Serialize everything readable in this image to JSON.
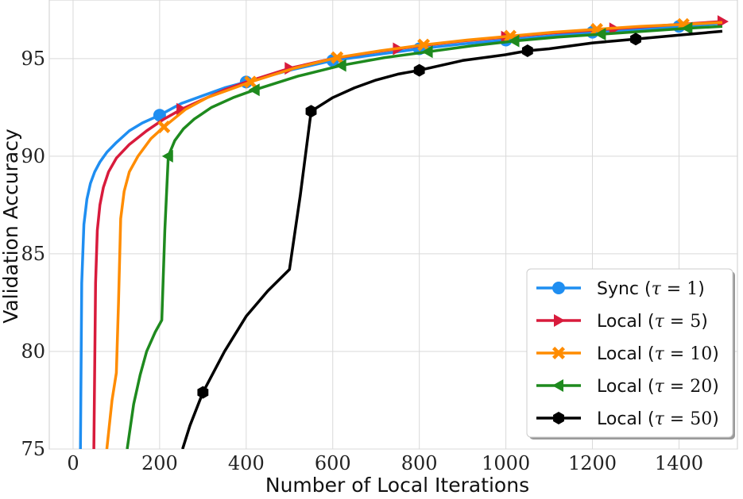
{
  "chart_data": {
    "type": "line",
    "xlabel": "Number of Local Iterations",
    "ylabel": "Validation Accuracy",
    "xlim": [
      -55,
      1535
    ],
    "ylim": [
      75,
      98
    ],
    "xticks": [
      0,
      200,
      400,
      600,
      800,
      1000,
      1200,
      1400
    ],
    "xtick_labels": [
      "0",
      "200",
      "400",
      "600",
      "800",
      "1000",
      "1200",
      "1400"
    ],
    "yticks": [
      75,
      80,
      85,
      90,
      95
    ],
    "ytick_labels": [
      "75",
      "80",
      "85",
      "90",
      "95"
    ],
    "grid": true,
    "legend_position": "lower-right",
    "series": [
      {
        "name": "Sync (τ = 1)",
        "legend_label": "Sync",
        "legend_tau": "1",
        "color": "#1f8ef1",
        "marker": "circle",
        "x": [
          17,
          20,
          25,
          32,
          40,
          50,
          62,
          78,
          100,
          130,
          160,
          200,
          250,
          300,
          350,
          400,
          500,
          600,
          700,
          800,
          900,
          1000,
          1100,
          1200,
          1300,
          1400,
          1500
        ],
        "y": [
          75,
          83.5,
          86.5,
          87.8,
          88.6,
          89.2,
          89.7,
          90.2,
          90.7,
          91.3,
          91.7,
          92.1,
          92.7,
          93.1,
          93.5,
          93.8,
          94.4,
          94.9,
          95.2,
          95.5,
          95.75,
          95.95,
          96.15,
          96.35,
          96.5,
          96.65,
          96.8
        ],
        "marker_x": [
          200,
          400,
          600,
          800,
          1000,
          1200,
          1400
        ]
      },
      {
        "name": "Local (τ = 5)",
        "legend_label": "Local",
        "legend_tau": "5",
        "color": "#d81b3c",
        "marker": "triangle-right",
        "x": [
          48,
          52,
          56,
          62,
          70,
          82,
          100,
          130,
          170,
          210,
          250,
          300,
          350,
          400,
          500,
          600,
          700,
          800,
          900,
          1000,
          1100,
          1200,
          1300,
          1400,
          1500
        ],
        "y": [
          75,
          83.5,
          86.2,
          87.5,
          88.4,
          89.2,
          89.9,
          90.6,
          91.3,
          91.9,
          92.4,
          92.9,
          93.4,
          93.8,
          94.5,
          95.0,
          95.35,
          95.65,
          95.9,
          96.1,
          96.3,
          96.45,
          96.6,
          96.75,
          96.9
        ],
        "marker_x": [
          250,
          500,
          750,
          1000,
          1250,
          1500
        ]
      },
      {
        "name": "Local (τ = 10)",
        "legend_label": "Local",
        "legend_tau": "10",
        "color": "#ff8c00",
        "marker": "x",
        "x": [
          78,
          90,
          100,
          105,
          110,
          118,
          130,
          150,
          180,
          210,
          260,
          310,
          360,
          410,
          510,
          610,
          710,
          810,
          910,
          1010,
          1110,
          1210,
          1310,
          1410,
          1500
        ],
        "y": [
          75,
          77.5,
          78.9,
          82.5,
          86.8,
          88.2,
          89.2,
          90.0,
          90.9,
          91.5,
          92.4,
          93.0,
          93.4,
          93.8,
          94.5,
          95.05,
          95.4,
          95.7,
          95.95,
          96.15,
          96.35,
          96.5,
          96.65,
          96.75,
          96.85
        ],
        "marker_x": [
          210,
          410,
          610,
          810,
          1010,
          1210,
          1410
        ]
      },
      {
        "name": "Local (τ = 20)",
        "legend_label": "Local",
        "legend_tau": "20",
        "color": "#1e8a1e",
        "marker": "triangle-left",
        "x": [
          125,
          140,
          155,
          170,
          190,
          205,
          212,
          220,
          235,
          255,
          280,
          320,
          370,
          420,
          520,
          620,
          720,
          820,
          920,
          1020,
          1120,
          1220,
          1320,
          1420,
          1500
        ],
        "y": [
          75,
          77.3,
          78.8,
          80.0,
          81.0,
          81.6,
          86.2,
          90.0,
          90.8,
          91.4,
          91.9,
          92.5,
          93.0,
          93.4,
          94.1,
          94.65,
          95.05,
          95.35,
          95.65,
          95.9,
          96.1,
          96.25,
          96.4,
          96.55,
          96.65
        ],
        "marker_x": [
          220,
          420,
          620,
          820,
          1020,
          1220,
          1420
        ]
      },
      {
        "name": "Local (τ = 50)",
        "legend_label": "Local",
        "legend_tau": "50",
        "color": "#000000",
        "marker": "hexagon",
        "x": [
          253,
          270,
          300,
          350,
          400,
          450,
          500,
          525,
          550,
          600,
          650,
          700,
          750,
          800,
          900,
          1000,
          1050,
          1100,
          1200,
          1300,
          1400,
          1500
        ],
        "y": [
          75,
          76.2,
          77.9,
          80.0,
          81.8,
          83.1,
          84.2,
          88.0,
          92.3,
          93.0,
          93.5,
          93.9,
          94.2,
          94.4,
          94.9,
          95.2,
          95.4,
          95.5,
          95.8,
          96.0,
          96.2,
          96.4
        ],
        "marker_x": [
          300,
          550,
          800,
          1050,
          1300
        ]
      }
    ]
  }
}
